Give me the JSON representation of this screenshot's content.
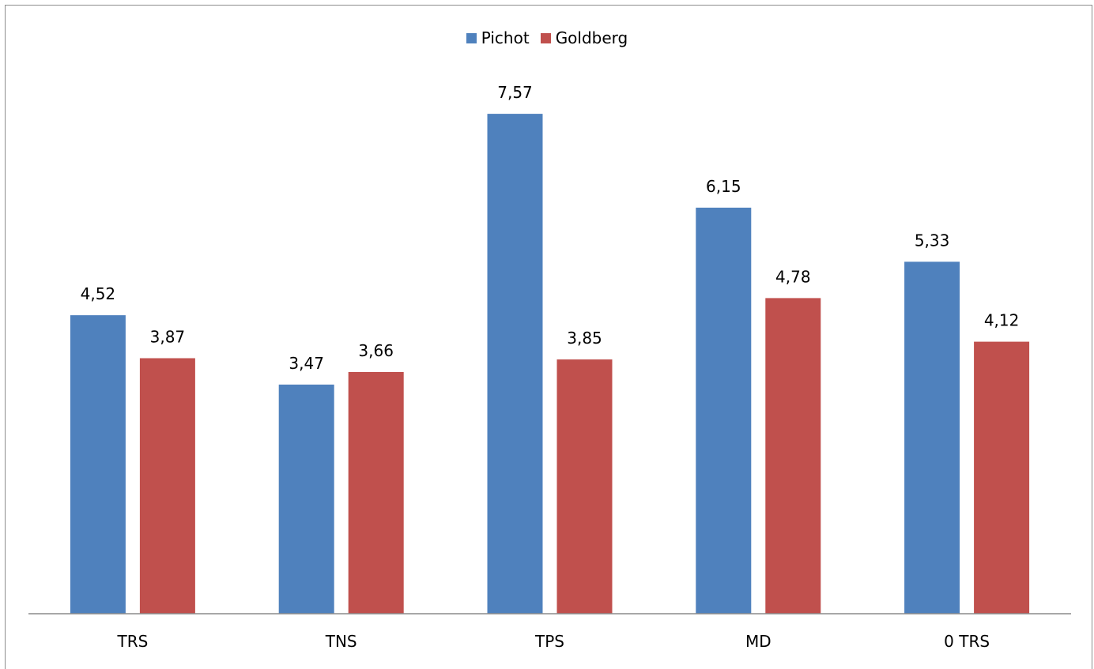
{
  "chart_data": {
    "type": "bar",
    "categories": [
      "TRS",
      "TNS",
      "TPS",
      "MD",
      "0 TRS"
    ],
    "series": [
      {
        "name": "Pichot",
        "color": "#4f81bd",
        "values": [
          4.52,
          3.47,
          7.57,
          6.15,
          5.33
        ],
        "labels": [
          "4,52",
          "3,47",
          "7,57",
          "6,15",
          "5,33"
        ]
      },
      {
        "name": "Goldberg",
        "color": "#c0504d",
        "values": [
          3.87,
          3.66,
          3.85,
          4.78,
          4.12
        ],
        "labels": [
          "3,87",
          "3,66",
          "3,85",
          "4,78",
          "4,12"
        ]
      }
    ],
    "ylim": [
      0,
      8.3
    ],
    "legend_position": "top-center",
    "grid": false,
    "title": "",
    "xlabel": "",
    "ylabel": ""
  }
}
